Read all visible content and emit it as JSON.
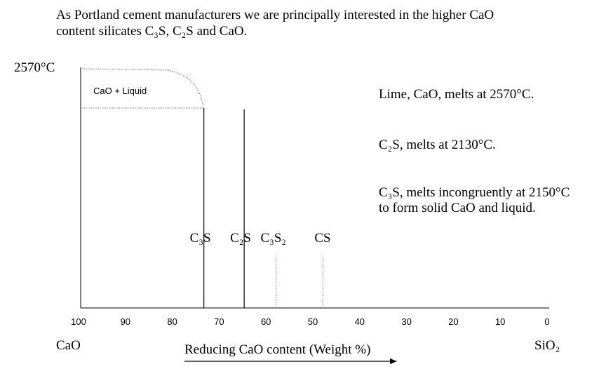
{
  "intro": {
    "line1": "As Portland cement manufacturers we are principally interested in the higher CaO",
    "line2": "content silicates C₃S, C₂S and CaO."
  },
  "temp_label": "2570°C",
  "region_label": "CaO + Liquid",
  "notes": {
    "lime": "Lime, CaO, melts at 2570°C.",
    "c2s": "C₂S, melts at 2130°C.",
    "c3s_line1": "C₃S, melts incongruently at 2150°C",
    "c3s_line2": "to form solid CaO and liquid."
  },
  "compounds": [
    {
      "label": "C₃S",
      "cao_wt": 73.7,
      "style": "solid"
    },
    {
      "label": "C₂S",
      "cao_wt": 65.1,
      "style": "solid"
    },
    {
      "label": "C₃S₂",
      "cao_wt": 58.3,
      "style": "dotted"
    },
    {
      "label": "CS",
      "cao_wt": 48.3,
      "style": "dotted"
    }
  ],
  "axis": {
    "ticks": [
      100,
      90,
      80,
      70,
      60,
      50,
      40,
      30,
      20,
      10,
      0
    ],
    "left_end": "CaO",
    "right_end": "SiO₂",
    "xlabel": "Reducing CaO content (Weight %)"
  }
}
